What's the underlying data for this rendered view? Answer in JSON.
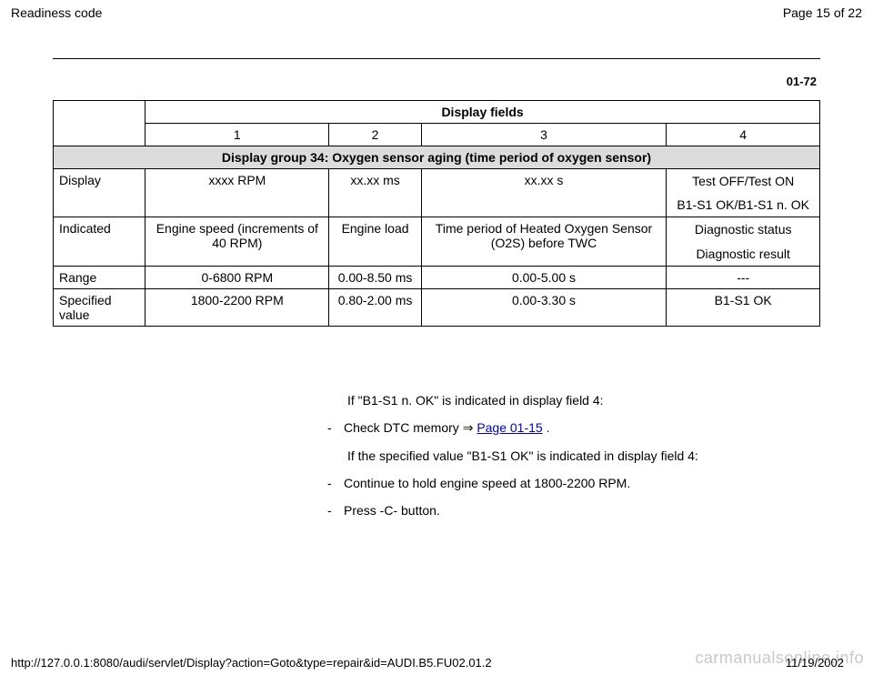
{
  "header": {
    "title": "Readiness code",
    "page": "Page 15 of 22"
  },
  "section_code": "01-72",
  "table": {
    "header_span": "Display fields",
    "col_nums": [
      "1",
      "2",
      "3",
      "4"
    ],
    "group_title": "Display group 34: Oxygen sensor aging (time period of oxygen sensor)",
    "rows": [
      {
        "label": "Display",
        "c1": "xxxx RPM",
        "c2": "xx.xx ms",
        "c3": "xx.xx s",
        "c4a": "Test OFF/Test ON",
        "c4b": "B1-S1 OK/B1-S1 n. OK"
      },
      {
        "label": "Indicated",
        "c1": "Engine speed (increments of 40 RPM)",
        "c2": "Engine load",
        "c3": "Time period of Heated Oxygen Sensor (O2S) before TWC",
        "c4a": "Diagnostic status",
        "c4b": "Diagnostic result"
      },
      {
        "label": "Range",
        "c1": "0-6800 RPM",
        "c2": "0.00-8.50 ms",
        "c3": "0.00-5.00 s",
        "c4": "---"
      },
      {
        "label": "Specified value",
        "c1": "1800-2200 RPM",
        "c2": "0.80-2.00 ms",
        "c3": "0.00-3.30 s",
        "c4": "B1-S1 OK"
      }
    ]
  },
  "notes": {
    "p1": "If \"B1-S1 n. OK\" is indicated in display field 4:",
    "b1_prefix": "Check DTC memory ",
    "b1_link": "Page 01-15",
    "b1_suffix": " .",
    "p2": "If the specified value \"B1-S1 OK\" is indicated in display field 4:",
    "b2": "Continue to hold engine speed at 1800-2200 RPM.",
    "b3": "Press -C- button."
  },
  "footer": {
    "url": "http://127.0.0.1:8080/audi/servlet/Display?action=Goto&type=repair&id=AUDI.B5.FU02.01.2",
    "date": "11/19/2002"
  },
  "watermark": "carmanualsonline.info"
}
